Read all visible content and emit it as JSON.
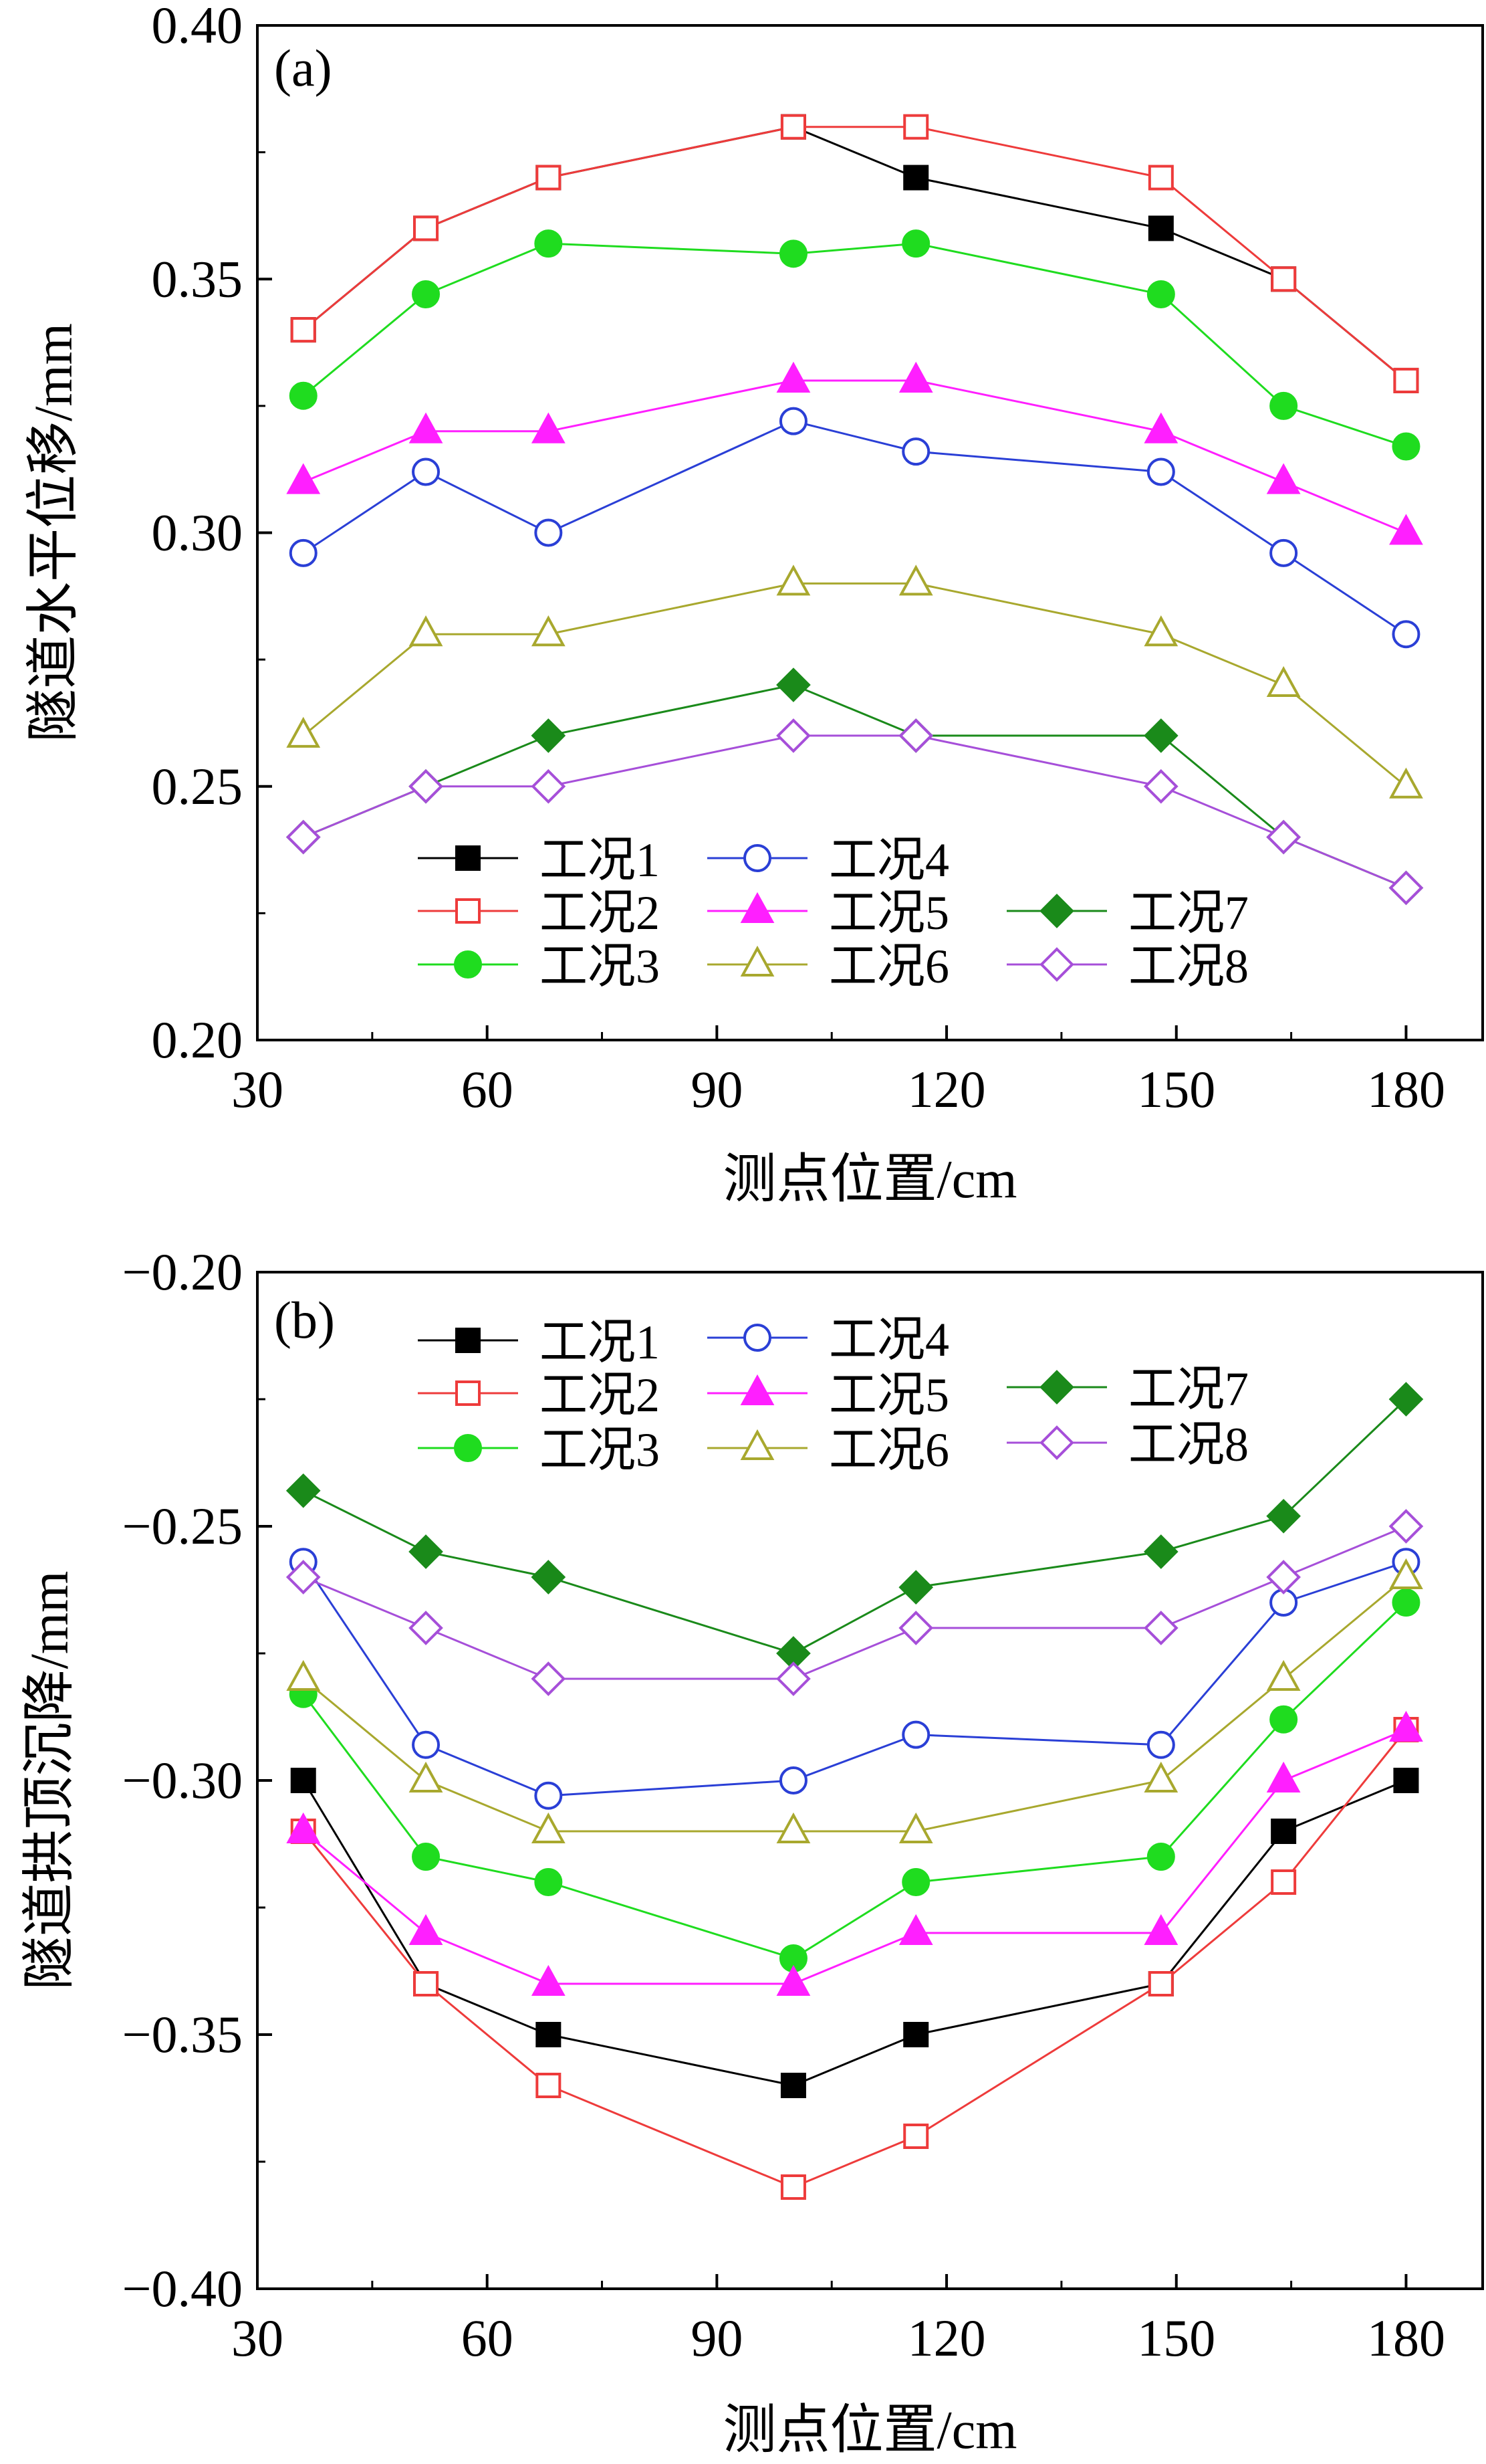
{
  "chart_data": [
    {
      "type": "line",
      "panel_label": "(a)",
      "xlabel": "测点位置/cm",
      "ylabel": "隧道水平位移/mm",
      "xlim": [
        30,
        190
      ],
      "ylim": [
        0.2,
        0.4
      ],
      "xticks": [
        30,
        60,
        90,
        120,
        150,
        180
      ],
      "xtick_labels": [
        "30",
        "60",
        "90",
        "120",
        "150",
        "180"
      ],
      "yticks": [
        0.2,
        0.25,
        0.3,
        0.35,
        0.4
      ],
      "ytick_labels": [
        "0.20",
        "0.25",
        "0.30",
        "0.35",
        "0.40"
      ],
      "x": [
        36,
        52,
        68,
        100,
        116,
        148,
        164,
        180
      ],
      "series": [
        {
          "name": "工况1",
          "color": "#000000",
          "marker": "square",
          "filled": true,
          "values": [
            0.34,
            0.36,
            0.37,
            0.38,
            0.37,
            0.36,
            0.35,
            0.33
          ]
        },
        {
          "name": "工况2",
          "color": "#ee3b3b",
          "marker": "square",
          "filled": false,
          "values": [
            0.34,
            0.36,
            0.37,
            0.38,
            0.38,
            0.37,
            0.35,
            0.33
          ]
        },
        {
          "name": "工况3",
          "color": "#1fdc1f",
          "marker": "circle",
          "filled": true,
          "values": [
            0.327,
            0.347,
            0.357,
            0.355,
            0.357,
            0.347,
            0.325,
            0.317
          ]
        },
        {
          "name": "工况4",
          "color": "#2a3fd6",
          "marker": "circle",
          "filled": false,
          "values": [
            0.296,
            0.312,
            0.3,
            0.322,
            0.316,
            0.312,
            0.296,
            0.28
          ]
        },
        {
          "name": "工况5",
          "color": "#ff1fff",
          "marker": "triangle",
          "filled": true,
          "values": [
            0.31,
            0.32,
            0.32,
            0.33,
            0.33,
            0.32,
            0.31,
            0.3
          ]
        },
        {
          "name": "工况6",
          "color": "#a8a82e",
          "marker": "triangle",
          "filled": false,
          "values": [
            0.26,
            0.28,
            0.28,
            0.29,
            0.29,
            0.28,
            0.27,
            0.25
          ]
        },
        {
          "name": "工况7",
          "color": "#1a8a1a",
          "marker": "diamond",
          "filled": true,
          "values": [
            0.24,
            0.25,
            0.26,
            0.27,
            0.26,
            0.26,
            0.24,
            0.23
          ]
        },
        {
          "name": "工况8",
          "color": "#a64fd9",
          "marker": "diamond",
          "filled": false,
          "values": [
            0.24,
            0.25,
            0.25,
            0.26,
            0.26,
            0.25,
            0.24,
            0.23
          ]
        }
      ]
    },
    {
      "type": "line",
      "panel_label": "(b)",
      "xlabel": "测点位置/cm",
      "ylabel": "隧道拱顶沉降/mm",
      "xlim": [
        30,
        190
      ],
      "ylim": [
        -0.4,
        -0.2
      ],
      "xticks": [
        30,
        60,
        90,
        120,
        150,
        180
      ],
      "xtick_labels": [
        "30",
        "60",
        "90",
        "120",
        "150",
        "180"
      ],
      "yticks": [
        -0.4,
        -0.35,
        -0.3,
        -0.25,
        -0.2
      ],
      "ytick_labels": [
        "−0.40",
        "−0.35",
        "−0.30",
        "−0.25",
        "−0.20"
      ],
      "x": [
        36,
        52,
        68,
        100,
        116,
        148,
        164,
        180
      ],
      "series": [
        {
          "name": "工况1",
          "color": "#000000",
          "marker": "square",
          "filled": true,
          "values": [
            -0.3,
            -0.34,
            -0.35,
            -0.36,
            -0.35,
            -0.34,
            -0.31,
            -0.3
          ]
        },
        {
          "name": "工况2",
          "color": "#ee3b3b",
          "marker": "square",
          "filled": false,
          "values": [
            -0.31,
            -0.34,
            -0.36,
            -0.38,
            -0.37,
            -0.34,
            -0.32,
            -0.29
          ]
        },
        {
          "name": "工况3",
          "color": "#1fdc1f",
          "marker": "circle",
          "filled": true,
          "values": [
            -0.283,
            -0.315,
            -0.32,
            -0.335,
            -0.32,
            -0.315,
            -0.288,
            -0.265
          ]
        },
        {
          "name": "工况4",
          "color": "#2a3fd6",
          "marker": "circle",
          "filled": false,
          "values": [
            -0.257,
            -0.293,
            -0.303,
            -0.3,
            -0.291,
            -0.293,
            -0.265,
            -0.257
          ]
        },
        {
          "name": "工况5",
          "color": "#ff1fff",
          "marker": "triangle",
          "filled": true,
          "values": [
            -0.31,
            -0.33,
            -0.34,
            -0.34,
            -0.33,
            -0.33,
            -0.3,
            -0.29
          ]
        },
        {
          "name": "工况6",
          "color": "#a8a82e",
          "marker": "triangle",
          "filled": false,
          "values": [
            -0.28,
            -0.3,
            -0.31,
            -0.31,
            -0.31,
            -0.3,
            -0.28,
            -0.26
          ]
        },
        {
          "name": "工况7",
          "color": "#1a8a1a",
          "marker": "diamond",
          "filled": true,
          "values": [
            -0.243,
            -0.255,
            -0.26,
            -0.275,
            -0.262,
            -0.255,
            -0.248,
            -0.225
          ]
        },
        {
          "name": "工况8",
          "color": "#a64fd9",
          "marker": "diamond",
          "filled": false,
          "values": [
            -0.26,
            -0.27,
            -0.28,
            -0.28,
            -0.27,
            -0.27,
            -0.26,
            -0.25
          ]
        }
      ]
    }
  ]
}
